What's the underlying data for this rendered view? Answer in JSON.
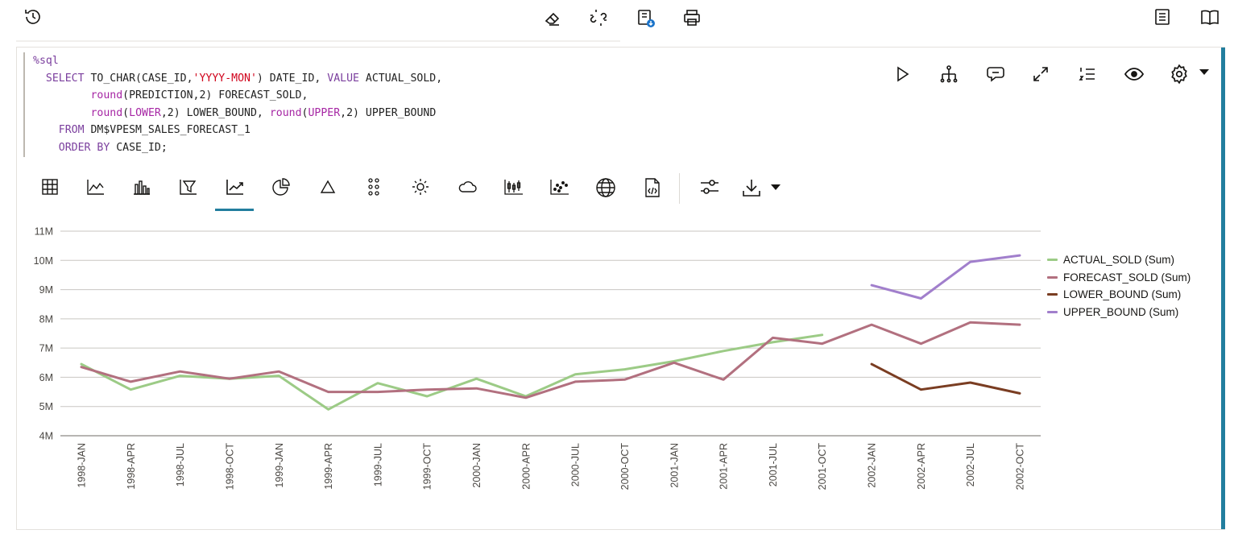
{
  "toolbar": {
    "left": [
      "history-icon"
    ],
    "center": [
      "eraser-icon",
      "unlink-icon",
      "save-download-icon",
      "print-icon"
    ],
    "right": [
      "list-icon",
      "book-icon"
    ]
  },
  "code": {
    "lines": [
      "%sql",
      "  SELECT TO_CHAR(CASE_ID,'YYYY-MON') DATE_ID, VALUE ACTUAL_SOLD,",
      "         round(PREDICTION,2) FORECAST_SOLD,",
      "         round(LOWER,2) LOWER_BOUND, round(UPPER,2) UPPER_BOUND",
      "    FROM DM$VPESM_SALES_FORECAST_1",
      "    ORDER BY CASE_ID;"
    ]
  },
  "cell_tools": [
    "run-icon",
    "hierarchy-icon",
    "comment-icon",
    "expand-icon",
    "numbered-list-icon",
    "eye-icon",
    "settings-icon",
    "caret-down-icon"
  ],
  "vis_tools": [
    "table-icon",
    "line-chart-icon",
    "bar-chart-icon",
    "funnel-icon",
    "trend-line-icon",
    "pie-chart-icon",
    "triangle-icon",
    "dots-grid-icon",
    "sun-icon",
    "cloud-icon",
    "candlestick-icon",
    "scatter-icon",
    "globe-icon",
    "code-file-icon",
    "sliders-icon",
    "download-icon",
    "caret-down-icon"
  ],
  "selected_vis": "trend-line-icon",
  "colors": {
    "accent": "#227e9e",
    "actual": "#9ccb86",
    "forecast": "#b2707f",
    "lower": "#7a3d22",
    "upper": "#a17fcc"
  },
  "chart_data": {
    "type": "line",
    "categories": [
      "1998-JAN",
      "1998-APR",
      "1998-JUL",
      "1998-OCT",
      "1999-JAN",
      "1999-APR",
      "1999-JUL",
      "1999-OCT",
      "2000-JAN",
      "2000-APR",
      "2000-JUL",
      "2000-OCT",
      "2001-JAN",
      "2001-APR",
      "2001-JUL",
      "2001-OCT",
      "2002-JAN",
      "2002-APR",
      "2002-JUL",
      "2002-OCT"
    ],
    "ylim": [
      4000000,
      11000000
    ],
    "yticks": [
      "4M",
      "5M",
      "6M",
      "7M",
      "8M",
      "9M",
      "10M",
      "11M"
    ],
    "grid": true,
    "legend_position": "right",
    "series": [
      {
        "name": "ACTUAL_SOLD (Sum)",
        "color": "#9ccb86",
        "values": [
          6450000,
          5580000,
          6050000,
          5950000,
          6050000,
          4900000,
          5800000,
          5350000,
          5950000,
          5350000,
          6100000,
          6270000,
          6550000,
          6900000,
          7200000,
          7450000,
          null,
          null,
          null,
          null
        ]
      },
      {
        "name": "FORECAST_SOLD (Sum)",
        "color": "#b2707f",
        "values": [
          6350000,
          5850000,
          6200000,
          5950000,
          6200000,
          5500000,
          5500000,
          5580000,
          5620000,
          5300000,
          5850000,
          5920000,
          6500000,
          5920000,
          7350000,
          7150000,
          7800000,
          7150000,
          7880000,
          7800000
        ]
      },
      {
        "name": "LOWER_BOUND (Sum)",
        "color": "#7a3d22",
        "values": [
          null,
          null,
          null,
          null,
          null,
          null,
          null,
          null,
          null,
          null,
          null,
          null,
          null,
          null,
          null,
          null,
          6450000,
          5580000,
          5820000,
          5450000
        ]
      },
      {
        "name": "UPPER_BOUND (Sum)",
        "color": "#a17fcc",
        "values": [
          null,
          null,
          null,
          null,
          null,
          null,
          null,
          null,
          null,
          null,
          null,
          null,
          null,
          null,
          null,
          null,
          9150000,
          8700000,
          9950000,
          10170000
        ]
      }
    ]
  }
}
